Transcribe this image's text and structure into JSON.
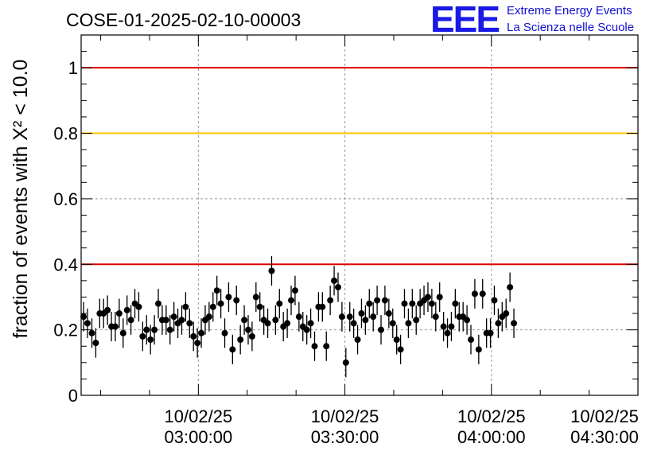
{
  "chart_data": {
    "type": "scatter",
    "title": "COSE-01-2025-02-10-00003",
    "ylabel": "fraction of events with X² < 10.0",
    "xlabel": "",
    "ylim": [
      0,
      1.1
    ],
    "xlim_minutes": [
      -24,
      90
    ],
    "grid": true,
    "yticks": [
      "0",
      "0.2",
      "0.4",
      "0.6",
      "0.8",
      "1"
    ],
    "ytick_values": [
      0,
      0.2,
      0.4,
      0.6,
      0.8,
      1.0
    ],
    "xticks": [
      {
        "date": "10/02/25",
        "time": "03:00:00",
        "minute": 0
      },
      {
        "date": "10/02/25",
        "time": "03:30:00",
        "minute": 30
      },
      {
        "date": "10/02/25",
        "time": "04:00:00",
        "minute": 60
      },
      {
        "date": "10/02/25",
        "time": "04:30:00",
        "minute": 90
      }
    ],
    "reference_lines": [
      {
        "y": 1.0,
        "color": "#e00000"
      },
      {
        "y": 0.8,
        "color": "#ffc000"
      },
      {
        "y": 0.4,
        "color": "#e00000"
      }
    ],
    "series": [
      {
        "color": "#000000",
        "error": 0.045,
        "points": [
          [
            -23.5,
            0.24
          ],
          [
            -22.7,
            0.22
          ],
          [
            -21.8,
            0.19
          ],
          [
            -21.0,
            0.16
          ],
          [
            -20.2,
            0.25
          ],
          [
            -19.4,
            0.25
          ],
          [
            -18.6,
            0.26
          ],
          [
            -17.8,
            0.21
          ],
          [
            -17.0,
            0.21
          ],
          [
            -16.2,
            0.25
          ],
          [
            -15.4,
            0.19
          ],
          [
            -14.6,
            0.26
          ],
          [
            -13.8,
            0.23
          ],
          [
            -13.0,
            0.28
          ],
          [
            -12.2,
            0.27
          ],
          [
            -11.4,
            0.18
          ],
          [
            -10.6,
            0.2
          ],
          [
            -9.8,
            0.17
          ],
          [
            -9.0,
            0.2
          ],
          [
            -8.2,
            0.28
          ],
          [
            -7.4,
            0.23
          ],
          [
            -6.6,
            0.23
          ],
          [
            -5.8,
            0.2
          ],
          [
            -5.0,
            0.24
          ],
          [
            -4.2,
            0.22
          ],
          [
            -3.4,
            0.23
          ],
          [
            -2.6,
            0.27
          ],
          [
            -1.8,
            0.22
          ],
          [
            -1.0,
            0.18
          ],
          [
            -0.2,
            0.16
          ],
          [
            0.6,
            0.19
          ],
          [
            1.4,
            0.23
          ],
          [
            2.2,
            0.24
          ],
          [
            3.0,
            0.27
          ],
          [
            3.8,
            0.32
          ],
          [
            4.6,
            0.28
          ],
          [
            5.4,
            0.19
          ],
          [
            6.2,
            0.3
          ],
          [
            7.0,
            0.14
          ],
          [
            7.8,
            0.29
          ],
          [
            8.6,
            0.17
          ],
          [
            9.4,
            0.23
          ],
          [
            10.2,
            0.2
          ],
          [
            11.0,
            0.18
          ],
          [
            11.8,
            0.3
          ],
          [
            12.6,
            0.27
          ],
          [
            13.4,
            0.23
          ],
          [
            14.2,
            0.22
          ],
          [
            15.0,
            0.38
          ],
          [
            15.8,
            0.23
          ],
          [
            16.6,
            0.28
          ],
          [
            17.4,
            0.21
          ],
          [
            18.2,
            0.22
          ],
          [
            19.0,
            0.29
          ],
          [
            19.8,
            0.32
          ],
          [
            20.6,
            0.24
          ],
          [
            21.4,
            0.21
          ],
          [
            22.2,
            0.2
          ],
          [
            23.0,
            0.22
          ],
          [
            23.8,
            0.15
          ],
          [
            24.6,
            0.27
          ],
          [
            25.4,
            0.27
          ],
          [
            26.2,
            0.15
          ],
          [
            27.0,
            0.29
          ],
          [
            27.8,
            0.35
          ],
          [
            28.6,
            0.33
          ],
          [
            29.4,
            0.24
          ],
          [
            30.2,
            0.1
          ],
          [
            31.0,
            0.24
          ],
          [
            31.8,
            0.22
          ],
          [
            32.6,
            0.17
          ],
          [
            33.4,
            0.25
          ],
          [
            34.2,
            0.23
          ],
          [
            35.0,
            0.28
          ],
          [
            35.8,
            0.24
          ],
          [
            36.6,
            0.29
          ],
          [
            37.4,
            0.2
          ],
          [
            38.2,
            0.29
          ],
          [
            39.0,
            0.25
          ],
          [
            39.8,
            0.22
          ],
          [
            40.6,
            0.17
          ],
          [
            41.4,
            0.14
          ],
          [
            42.2,
            0.28
          ],
          [
            43.0,
            0.22
          ],
          [
            43.8,
            0.28
          ],
          [
            44.6,
            0.23
          ],
          [
            45.4,
            0.28
          ],
          [
            46.2,
            0.29
          ],
          [
            47.0,
            0.3
          ],
          [
            47.8,
            0.28
          ],
          [
            48.6,
            0.24
          ],
          [
            49.4,
            0.3
          ],
          [
            50.2,
            0.21
          ],
          [
            51.0,
            0.19
          ],
          [
            51.8,
            0.21
          ],
          [
            52.6,
            0.28
          ],
          [
            53.4,
            0.24
          ],
          [
            54.2,
            0.24
          ],
          [
            55.0,
            0.23
          ],
          [
            55.8,
            0.17
          ],
          [
            56.6,
            0.31
          ],
          [
            57.4,
            0.14
          ],
          [
            58.2,
            0.31
          ],
          [
            59.0,
            0.19
          ],
          [
            59.8,
            0.19
          ],
          [
            60.6,
            0.29
          ],
          [
            61.4,
            0.22
          ],
          [
            62.2,
            0.24
          ],
          [
            63.0,
            0.25
          ],
          [
            63.8,
            0.33
          ],
          [
            64.6,
            0.22
          ]
        ]
      }
    ]
  },
  "logo": {
    "mark": "EEE",
    "line1": "Extreme Energy Events",
    "line2": "La Scienza nelle Scuole"
  }
}
